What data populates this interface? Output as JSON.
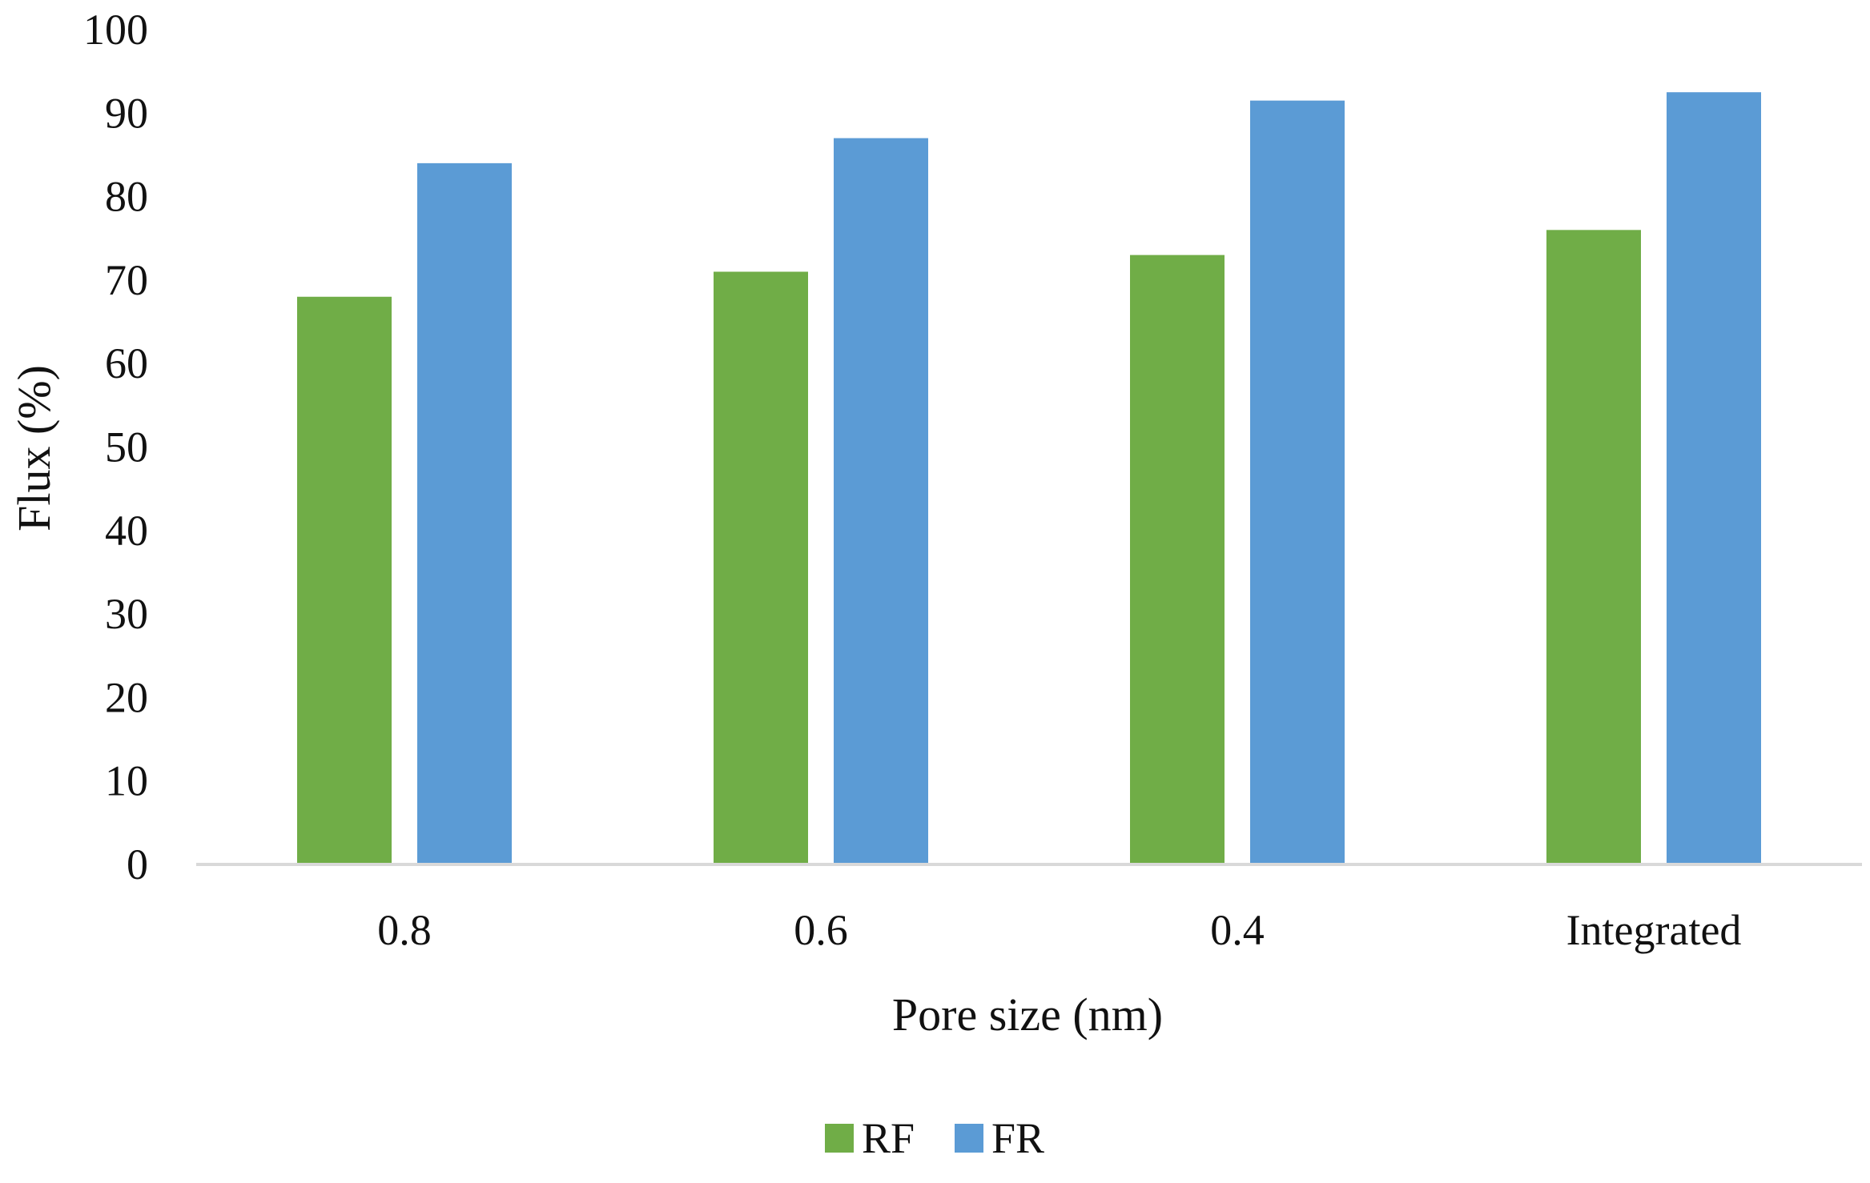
{
  "chart_data": {
    "type": "bar",
    "categories": [
      "0.8",
      "0.6",
      "0.4",
      "Integrated"
    ],
    "series": [
      {
        "name": "RF",
        "values": [
          68,
          71,
          73,
          76
        ],
        "color": "#70AD47"
      },
      {
        "name": "FR",
        "values": [
          84,
          87,
          91.5,
          92.5
        ],
        "color": "#5B9BD5"
      }
    ],
    "title": "",
    "xlabel": "Pore size (nm)",
    "ylabel": "Flux (%)",
    "ylim": [
      0,
      100
    ],
    "yticks": [
      0,
      10,
      20,
      30,
      40,
      50,
      60,
      70,
      80,
      90,
      100
    ],
    "grid": false,
    "legend_position": "bottom",
    "axis_color": "#D9D9D9"
  }
}
